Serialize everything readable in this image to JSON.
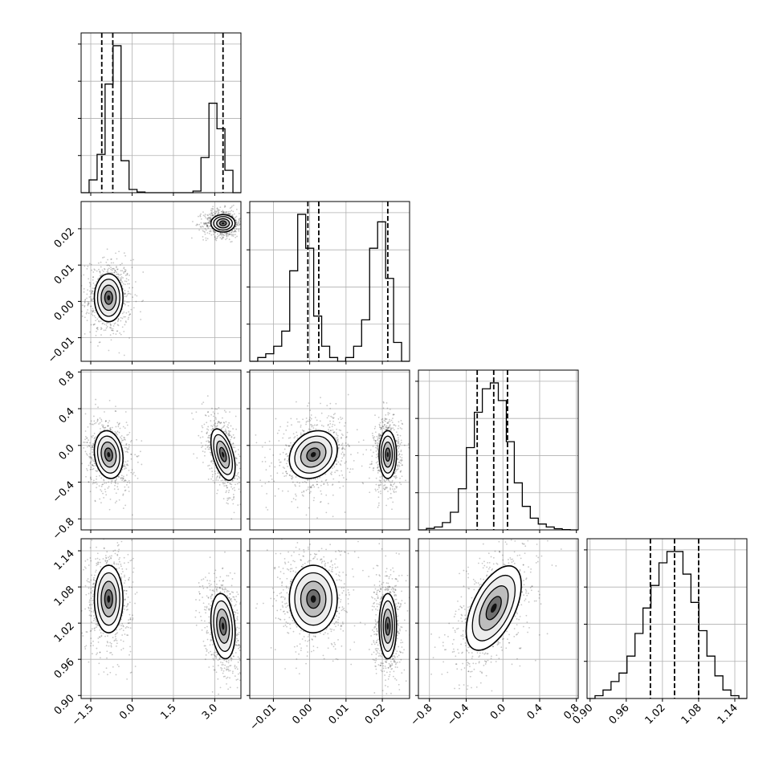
{
  "chart_data": {
    "type": "corner",
    "grid": true,
    "parameters": [
      {
        "ticks": [
          -1.5,
          0.0,
          1.5,
          3.0
        ],
        "tick_labels": [
          "−1.5",
          "0.0",
          "1.5",
          "3.0"
        ],
        "range": [
          -1.85,
          3.95
        ]
      },
      {
        "ticks": [
          -0.01,
          0.0,
          0.01,
          0.02
        ],
        "tick_labels": [
          "−0.01",
          "0.00",
          "0.01",
          "0.02"
        ],
        "range": [
          -0.0165,
          0.0275
        ]
      },
      {
        "ticks": [
          -0.8,
          -0.4,
          0.0,
          0.4,
          0.8
        ],
        "tick_labels": [
          "−0.8",
          "−0.4",
          "0.0",
          "0.4",
          "0.8"
        ],
        "range": [
          -0.92,
          0.82
        ]
      },
      {
        "ticks": [
          0.9,
          0.96,
          1.02,
          1.08,
          1.14
        ],
        "tick_labels": [
          "0.90",
          "0.96",
          "1.02",
          "1.08",
          "1.14"
        ],
        "range": [
          0.895,
          1.16
        ]
      }
    ],
    "histograms": [
      {
        "counts": [
          0,
          4,
          12,
          34,
          46,
          10,
          1,
          0.2,
          0,
          0,
          0,
          0,
          0,
          0,
          0.5,
          11,
          28,
          20,
          7,
          0
        ],
        "quantiles": [
          -1.1,
          -0.7,
          3.3
        ]
      },
      {
        "counts": [
          0,
          1,
          2,
          4,
          8,
          24,
          39,
          30,
          12,
          4,
          1,
          0,
          1,
          4,
          11,
          30,
          37,
          22,
          5,
          0
        ],
        "quantiles": [
          -0.0005,
          0.0025,
          0.0215
        ]
      },
      {
        "counts": [
          0,
          0.5,
          1,
          2.5,
          6,
          14,
          28,
          40,
          48,
          50,
          44,
          30,
          16,
          8,
          4,
          2,
          1,
          0.4,
          0.1,
          0
        ],
        "quantiles": [
          -0.28,
          -0.1,
          0.05
        ]
      },
      {
        "counts": [
          0,
          1,
          3,
          6,
          9,
          15,
          23,
          32,
          40,
          48,
          52,
          52,
          44,
          34,
          24,
          15,
          8,
          3,
          1,
          0
        ],
        "quantiles": [
          1.0,
          1.04,
          1.08
        ]
      }
    ],
    "pairs": [
      {
        "row": 1,
        "col": 0,
        "clusters": [
          {
            "cx": -0.85,
            "cy": 0.001,
            "sx": 0.26,
            "sy": 0.0033,
            "rho": 0.0
          },
          {
            "cx": 3.3,
            "cy": 0.0215,
            "sx": 0.22,
            "sy": 0.0012,
            "rho": 0.0
          }
        ]
      },
      {
        "row": 2,
        "col": 0,
        "clusters": [
          {
            "cx": -0.85,
            "cy": -0.1,
            "sx": 0.26,
            "sy": 0.13,
            "rho": -0.15
          },
          {
            "cx": 3.3,
            "cy": -0.1,
            "sx": 0.22,
            "sy": 0.14,
            "rho": -0.5
          }
        ]
      },
      {
        "row": 2,
        "col": 1,
        "clusters": [
          {
            "cx": 0.001,
            "cy": -0.1,
            "sx": 0.0033,
            "sy": 0.13,
            "rho": 0.2
          },
          {
            "cx": 0.0215,
            "cy": -0.1,
            "sx": 0.0012,
            "sy": 0.13,
            "rho": 0.0
          }
        ]
      },
      {
        "row": 3,
        "col": 0,
        "clusters": [
          {
            "cx": -0.85,
            "cy": 1.06,
            "sx": 0.26,
            "sy": 0.028,
            "rho": 0.0
          },
          {
            "cx": 3.3,
            "cy": 1.015,
            "sx": 0.22,
            "sy": 0.027,
            "rho": -0.2
          }
        ]
      },
      {
        "row": 3,
        "col": 1,
        "clusters": [
          {
            "cx": 0.001,
            "cy": 1.06,
            "sx": 0.0033,
            "sy": 0.028,
            "rho": 0.0
          },
          {
            "cx": 0.0215,
            "cy": 1.015,
            "sx": 0.0012,
            "sy": 0.027,
            "rho": 0.0
          }
        ]
      },
      {
        "row": 3,
        "col": 2,
        "clusters": [
          {
            "cx": -0.1,
            "cy": 1.045,
            "sx": 0.15,
            "sy": 0.035,
            "rho": 0.55
          }
        ]
      }
    ]
  }
}
